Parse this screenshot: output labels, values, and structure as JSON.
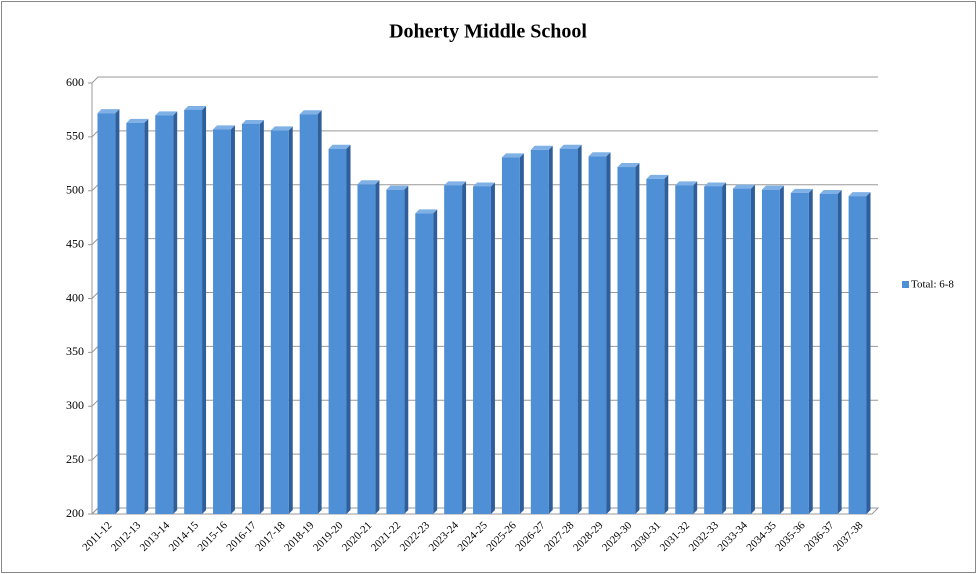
{
  "chart_data": {
    "type": "bar",
    "title": "Doherty Middle School",
    "categories": [
      "2011-12",
      "2012-13",
      "2013-14",
      "2014-15",
      "2015-16",
      "2016-17",
      "2017-18",
      "2018-19",
      "2019-20",
      "2020-21",
      "2021-22",
      "2022-23",
      "2023-24",
      "2024-25",
      "2025-26",
      "2026-27",
      "2027-28",
      "2028-29",
      "2029-30",
      "2030-31",
      "2031-32",
      "2032-33",
      "2033-34",
      "2034-35",
      "2035-36",
      "2036-37",
      "2037-38"
    ],
    "series": [
      {
        "name": "Total: 6-8",
        "color": "#4f8fd6",
        "values": [
          572,
          563,
          570,
          575,
          557,
          562,
          556,
          571,
          539,
          506,
          501,
          479,
          505,
          504,
          531,
          538,
          539,
          532,
          522,
          511,
          505,
          504,
          502,
          501,
          498,
          497,
          495
        ]
      }
    ],
    "ylim": [
      200,
      600
    ],
    "yticks": [
      200,
      250,
      300,
      350,
      400,
      450,
      500,
      550,
      600
    ],
    "grid": true,
    "legend": "right"
  }
}
